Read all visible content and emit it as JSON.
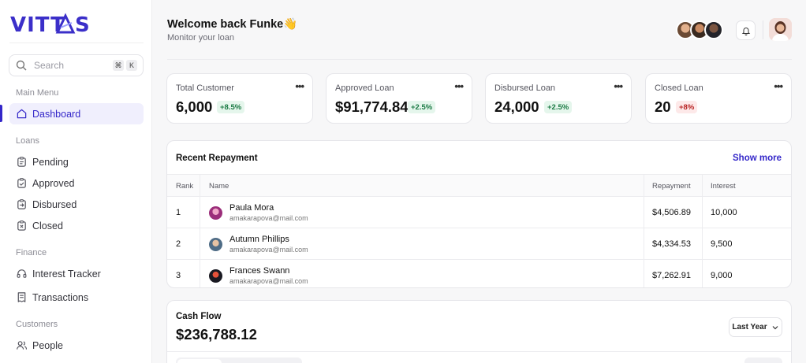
{
  "brand": {
    "name": "VITTAS"
  },
  "search": {
    "placeholder": "Search",
    "shortcut_keys": [
      "⌘",
      "K"
    ]
  },
  "sidebar": {
    "main_menu_label": "Main Menu",
    "dashboard": "Dashboard",
    "loans_label": "Loans",
    "loans": [
      "Pending",
      "Approved",
      "Disbursed",
      "Closed"
    ],
    "finance_label": "Finance",
    "finance": [
      "Interest Tracker",
      "Transactions"
    ],
    "customers_label": "Customers",
    "customers": [
      "People"
    ]
  },
  "header": {
    "welcome": "Welcome back Funke👋",
    "subtitle": "Monitor your  loan"
  },
  "stats": [
    {
      "label": "Total Customer",
      "value": "6,000",
      "change": "+8.5%",
      "trend": "up"
    },
    {
      "label": "Approved Loan",
      "value": "$91,774.84",
      "change": "+2.5%",
      "trend": "up"
    },
    {
      "label": "Disbursed Loan",
      "value": "24,000",
      "change": "+2.5%",
      "trend": "up"
    },
    {
      "label": "Closed Loan",
      "value": "20",
      "change": "+8%",
      "trend": "down"
    }
  ],
  "repayment": {
    "title": "Recent Repayment",
    "show_more": "Show more",
    "columns": [
      "Rank",
      "Name",
      "Repayment",
      "Interest"
    ],
    "rows": [
      {
        "rank": "1",
        "name": "Paula Mora",
        "email": "amakarapova@mail.com",
        "repayment": "$4,506.89",
        "interest": "10,000"
      },
      {
        "rank": "2",
        "name": "Autumn Phillips",
        "email": "amakarapova@mail.com",
        "repayment": "$4,334.53",
        "interest": "9,500"
      },
      {
        "rank": "3",
        "name": "Frances Swann",
        "email": "amakarapova@mail.com",
        "repayment": "$7,262.91",
        "interest": "9,000"
      }
    ]
  },
  "cashflow": {
    "title": "Cash Flow",
    "amount": "$236,788.12",
    "period": "Last Year"
  },
  "colors": {
    "accent": "#3427c9",
    "positive": "#1b7a44",
    "negative": "#b82323"
  }
}
